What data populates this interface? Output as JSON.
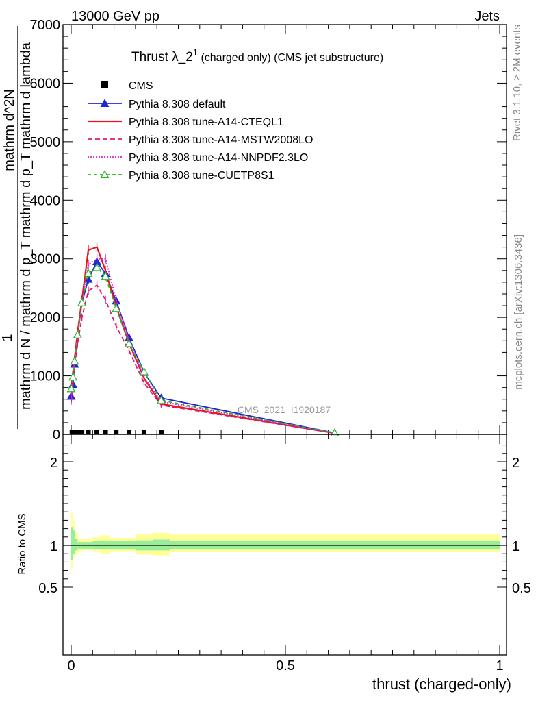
{
  "header": {
    "left": "13000 GeV pp",
    "right": "Jets"
  },
  "side_labels": {
    "rivet": "Rivet 3.1.10, ≥ 2M events",
    "mcplots": "mcplots.cern.ch [arXiv:1306.3436]"
  },
  "watermark": "CMS_2021_I1920187",
  "chart_data": [
    {
      "type": "line",
      "title": "Thrust λ_2",
      "title_sup": "1",
      "title_suffix": " (charged only) (CMS jet substructure)",
      "ylabel": {
        "one": "1",
        "numerator": "mathrm d^2N",
        "denominator": "mathrm d N / mathrm d p_T mathrm d p_T mathrm d lambda"
      },
      "xlim": [
        0,
        1
      ],
      "ylim": [
        0,
        7000
      ],
      "yticks": [
        0,
        1000,
        2000,
        3000,
        4000,
        5000,
        6000,
        7000
      ],
      "ytick_labels": [
        "0",
        "1000",
        "2000",
        "3000",
        "4000",
        "5000",
        "6000",
        "7000"
      ],
      "legend_position": "top-left",
      "data_series": {
        "name": "CMS",
        "color": "#000000",
        "x": [
          0.002,
          0.008,
          0.015,
          0.025,
          0.04,
          0.06,
          0.08,
          0.105,
          0.135,
          0.17,
          0.21
        ],
        "y": [
          0,
          0,
          0,
          0,
          0,
          0,
          0,
          0,
          0,
          0,
          0
        ]
      },
      "x": [
        0.002,
        0.008,
        0.015,
        0.025,
        0.04,
        0.06,
        0.08,
        0.105,
        0.135,
        0.17,
        0.21,
        0.615
      ],
      "series": [
        {
          "name": "Pythia 8.308 default",
          "color": "#1f26d9",
          "dash": "",
          "marker": "triangle-filled",
          "values": [
            650,
            850,
            1200,
            1700,
            2250,
            2650,
            2950,
            2750,
            2280,
            1650,
            1060,
            620,
            25
          ],
          "x": [
            0.0,
            0.004,
            0.008,
            0.015,
            0.025,
            0.04,
            0.06,
            0.08,
            0.105,
            0.135,
            0.17,
            0.21,
            0.615
          ]
        },
        {
          "name": "Pythia 8.308 tune-A14-CTEQL1",
          "color": "#e8141c",
          "dash": "",
          "marker": "none",
          "values": [
            800,
            1050,
            1300,
            1750,
            2300,
            3150,
            3200,
            2800,
            2180,
            1560,
            960,
            520,
            20
          ],
          "x": [
            0.0,
            0.004,
            0.008,
            0.015,
            0.025,
            0.04,
            0.06,
            0.08,
            0.105,
            0.135,
            0.17,
            0.21,
            0.615
          ]
        },
        {
          "name": "Pythia 8.308 tune-A14-MSTW2008LO",
          "color": "#e6176f",
          "dash": "7,4",
          "marker": "none",
          "values": [
            550,
            850,
            1150,
            1550,
            2000,
            2450,
            2550,
            2300,
            1850,
            1430,
            880,
            500,
            20
          ],
          "x": [
            0.0,
            0.004,
            0.008,
            0.015,
            0.025,
            0.04,
            0.06,
            0.08,
            0.105,
            0.135,
            0.17,
            0.21,
            0.615
          ]
        },
        {
          "name": "Pythia 8.308 tune-A14-NNPDF2.3LO",
          "color": "#e020c8",
          "dash": "2,2",
          "marker": "none",
          "values": [
            650,
            950,
            1250,
            1700,
            2250,
            2900,
            3000,
            3000,
            2300,
            1600,
            980,
            560,
            22
          ],
          "x": [
            0.0,
            0.004,
            0.008,
            0.015,
            0.025,
            0.04,
            0.06,
            0.08,
            0.105,
            0.135,
            0.17,
            0.21,
            0.615
          ]
        },
        {
          "name": "Pythia 8.308 tune-CUETP8S1",
          "color": "#27b827",
          "dash": "5,4",
          "marker": "triangle-open",
          "values": [
            780,
            980,
            1250,
            1700,
            2250,
            2750,
            2850,
            2700,
            2150,
            1550,
            1070,
            580,
            24
          ],
          "x": [
            0.0,
            0.004,
            0.008,
            0.015,
            0.025,
            0.04,
            0.06,
            0.08,
            0.105,
            0.135,
            0.17,
            0.21,
            0.615
          ]
        }
      ]
    },
    {
      "type": "area",
      "ylabel": "Ratio to CMS",
      "xlabel": "thrust (charged-only)",
      "xlim": [
        0,
        1
      ],
      "ylim": [
        0.3,
        2.3
      ],
      "yticks": [
        0.5,
        1,
        2
      ],
      "ytick_labels": [
        "0.5",
        "1",
        "2"
      ],
      "xticks": [
        0,
        0.5,
        1
      ],
      "xtick_labels": [
        "0",
        "0.5",
        "1"
      ],
      "bins": [
        0,
        0.004,
        0.008,
        0.015,
        0.025,
        0.035,
        0.05,
        0.07,
        0.09,
        0.12,
        0.15,
        0.19,
        0.23,
        1.0
      ],
      "yellow_band": [
        [
          0.72,
          1.4
        ],
        [
          0.85,
          1.3
        ],
        [
          0.9,
          1.15
        ],
        [
          0.93,
          1.08
        ],
        [
          0.94,
          1.08
        ],
        [
          0.94,
          1.08
        ],
        [
          0.93,
          1.1
        ],
        [
          0.9,
          1.12
        ],
        [
          0.93,
          1.09
        ],
        [
          0.93,
          1.09
        ],
        [
          0.89,
          1.14
        ],
        [
          0.88,
          1.15
        ],
        [
          0.92,
          1.13
        ]
      ],
      "green_band": [
        [
          0.82,
          1.22
        ],
        [
          0.9,
          1.18
        ],
        [
          0.94,
          1.08
        ],
        [
          0.96,
          1.04
        ],
        [
          0.96,
          1.04
        ],
        [
          0.96,
          1.04
        ],
        [
          0.95,
          1.05
        ],
        [
          0.95,
          1.05
        ],
        [
          0.95,
          1.05
        ],
        [
          0.95,
          1.05
        ],
        [
          0.94,
          1.06
        ],
        [
          0.94,
          1.07
        ],
        [
          0.95,
          1.05
        ]
      ],
      "reference": 1
    }
  ]
}
